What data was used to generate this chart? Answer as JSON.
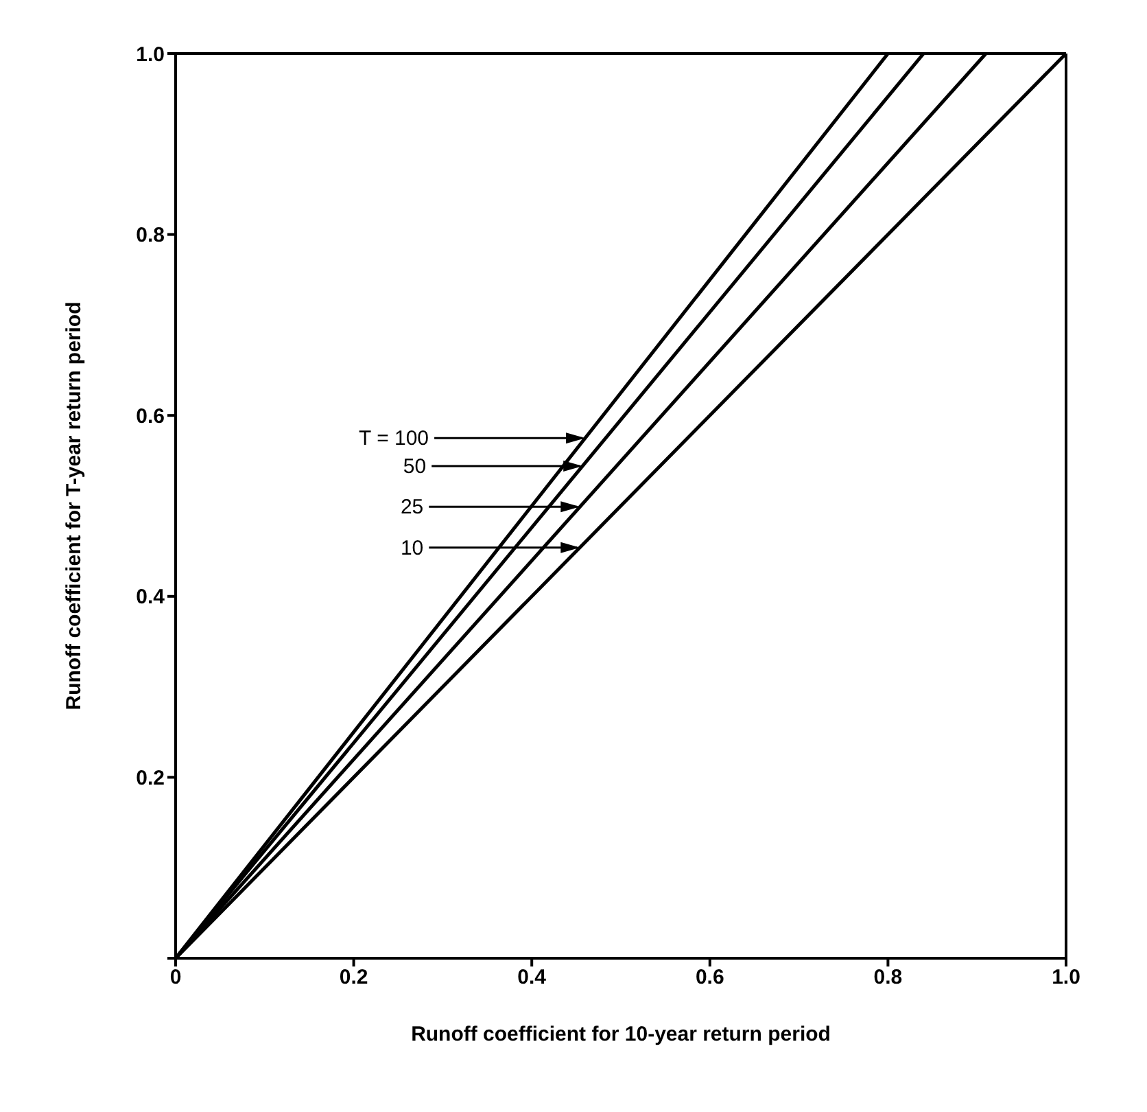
{
  "chart_data": {
    "type": "line",
    "xlabel": "Runoff coefficient for 10-year return period",
    "ylabel": "Runoff coefficient for T-year return period",
    "xlim": [
      0,
      1
    ],
    "ylim": [
      0,
      1
    ],
    "xticks": [
      {
        "value": 0,
        "label": "0"
      },
      0.2,
      0.4,
      0.6,
      0.8,
      {
        "value": 1,
        "label": "1.0"
      }
    ],
    "yticks": [
      {
        "value": 0,
        "label": null
      },
      0.2,
      0.4,
      0.6,
      0.8,
      {
        "value": 1,
        "label": "1.0"
      }
    ],
    "marker": "none",
    "line_style": "solid",
    "series": [
      {
        "color": "#000000",
        "x": [
          0,
          0.8
        ],
        "values": [
          0,
          1
        ]
      },
      {
        "color": "#000000",
        "x": [
          0,
          0.84
        ],
        "values": [
          0,
          1
        ]
      },
      {
        "color": "#000000",
        "x": [
          0,
          0.91
        ],
        "values": [
          0,
          1
        ]
      },
      {
        "color": "#000000",
        "x": [
          0,
          1
        ],
        "values": [
          0,
          1
        ]
      }
    ],
    "annotations": [
      {
        "text": "T = 100",
        "x": 0.46,
        "y": 0.575
      },
      {
        "text": "50",
        "x": 0.457,
        "y": 0.544
      },
      {
        "text": "25",
        "x": 0.454,
        "y": 0.499
      },
      {
        "text": "10",
        "x": 0.454,
        "y": 0.454
      }
    ]
  }
}
